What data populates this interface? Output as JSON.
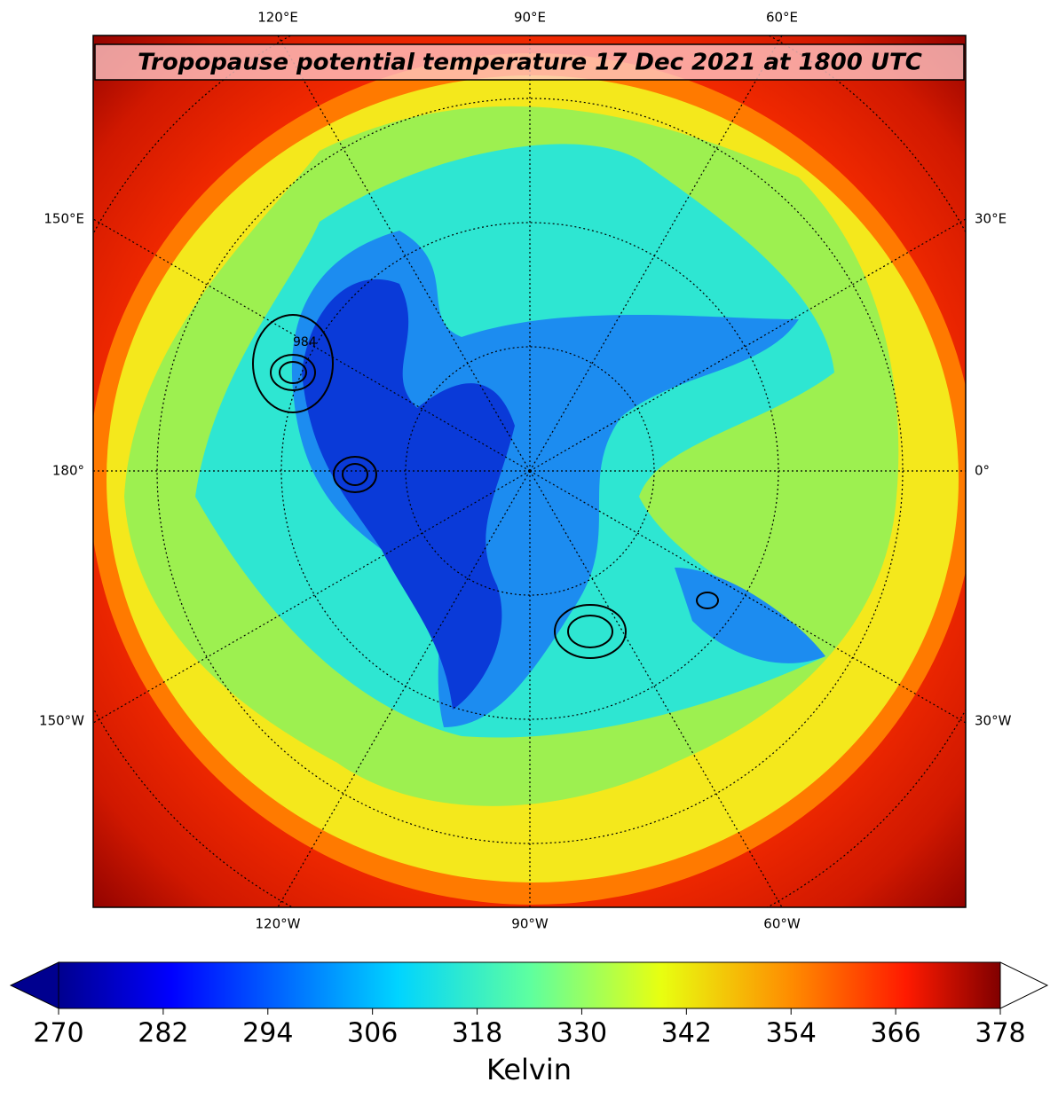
{
  "map": {
    "title": "Tropopause potential temperature 17 Dec 2021 at 1800 UTC",
    "labels": {
      "top": [
        "120°E",
        "90°E",
        "60°E"
      ],
      "left": [
        "150°E",
        "180°",
        "150°W"
      ],
      "right": [
        "30°E",
        "0°",
        "30°W"
      ],
      "bottom": [
        "120°W",
        "90°W",
        "60°W"
      ]
    },
    "contour_labels": [
      "984"
    ]
  },
  "colorbar": {
    "label": "Kelvin",
    "lim": [
      270,
      378
    ],
    "ticks": [
      270,
      282,
      294,
      306,
      318,
      330,
      342,
      354,
      366,
      378
    ]
  }
}
